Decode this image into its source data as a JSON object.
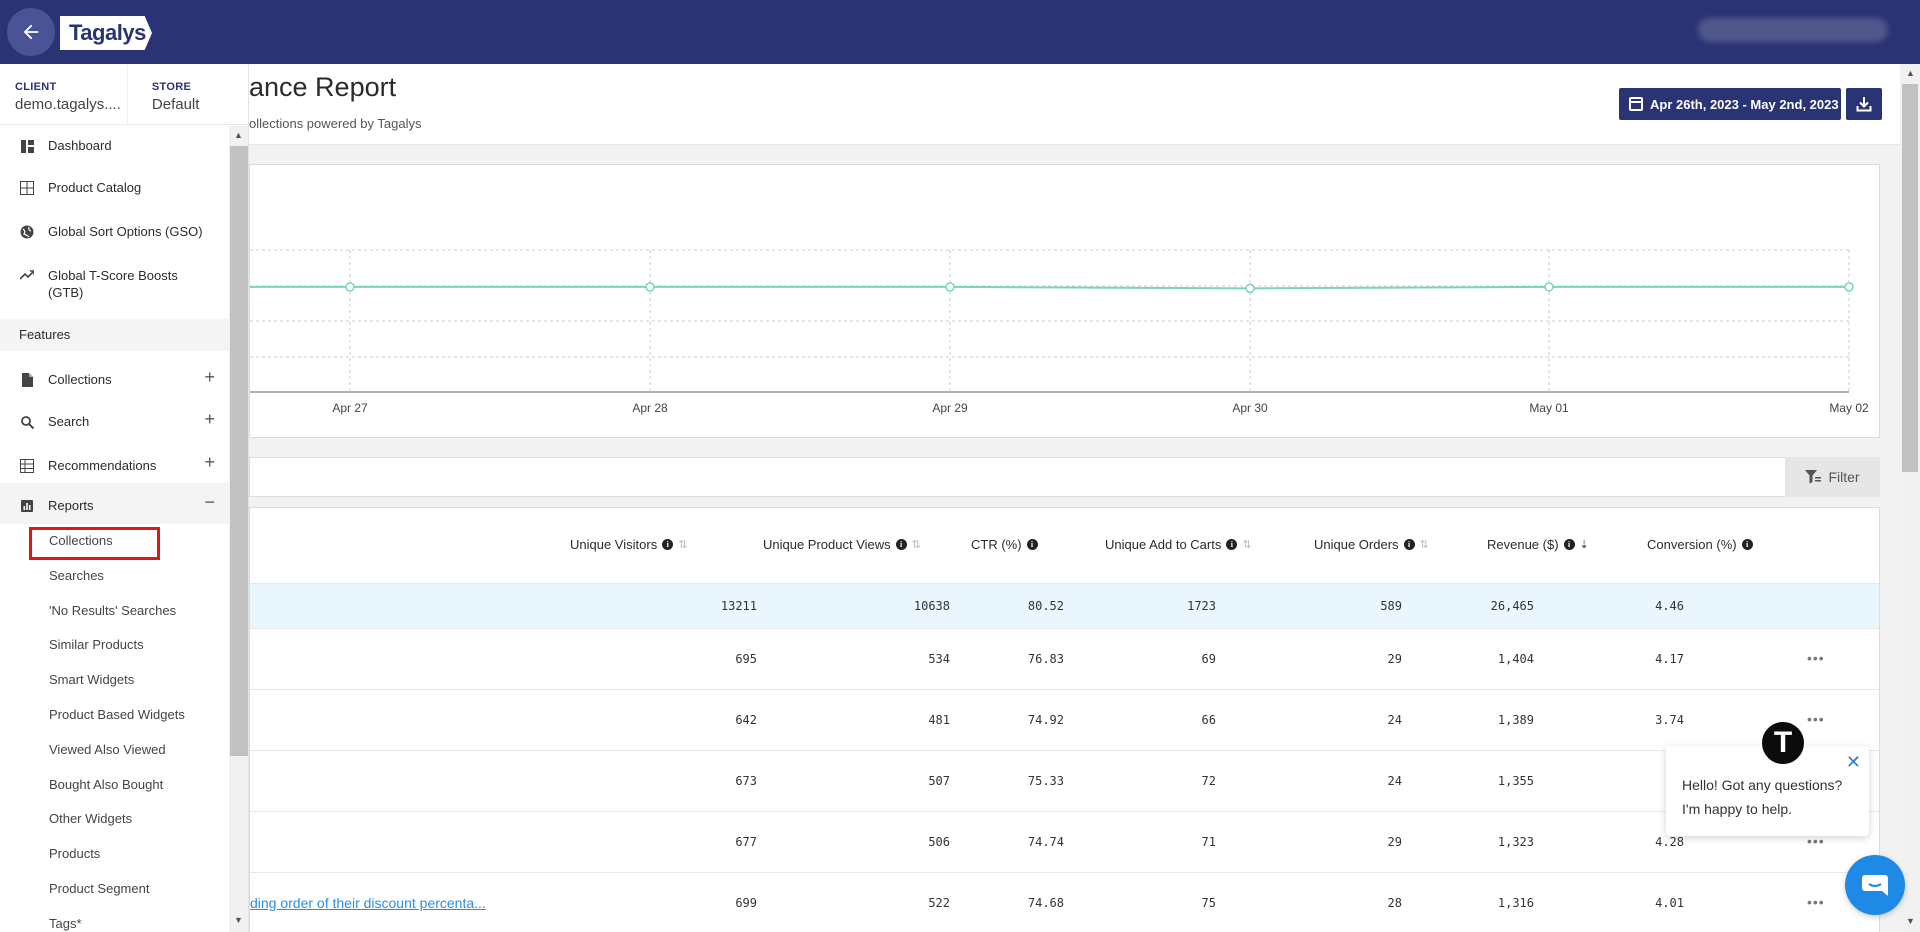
{
  "header": {
    "logo": "Tagalys",
    "back_icon": "arrow-left-icon"
  },
  "sidebar": {
    "client_label": "CLIENT",
    "client_value": "demo.tagalys....",
    "store_label": "STORE",
    "store_value": "Default",
    "top_items": [
      {
        "label": "Dashboard",
        "icon": "dashboard-icon"
      },
      {
        "label": "Product Catalog",
        "icon": "grid-icon"
      },
      {
        "label": "Global Sort Options (GSO)",
        "icon": "globe-icon"
      },
      {
        "label": "Global T-Score Boosts (GTB)",
        "icon": "trending-up-icon"
      }
    ],
    "features_label": "Features",
    "feature_items": [
      {
        "label": "Collections",
        "icon": "document-icon",
        "action": "+"
      },
      {
        "label": "Search",
        "icon": "search-icon",
        "action": "+"
      },
      {
        "label": "Recommendations",
        "icon": "table-icon",
        "action": "+"
      },
      {
        "label": "Reports",
        "icon": "bar-chart-icon",
        "action": "−"
      }
    ],
    "report_items": [
      "Collections",
      "Searches",
      "'No Results' Searches",
      "Similar Products",
      "Smart Widgets",
      "Product Based Widgets",
      "Viewed Also Viewed",
      "Bought Also Bought",
      "Other Widgets",
      "Products",
      "Product Segment",
      "Tags*"
    ]
  },
  "page": {
    "title": "ance Report",
    "subtitle": "ollections powered by Tagalys",
    "date_range": "Apr 26th, 2023 - May 2nd, 2023",
    "filter_label": "Filter"
  },
  "chart_data": {
    "type": "line",
    "x": [
      "Apr 27",
      "Apr 28",
      "Apr 29",
      "Apr 30",
      "May 01",
      "May 02"
    ],
    "series": [
      {
        "values": [
          0.74,
          0.74,
          0.74,
          0.73,
          0.74,
          0.74
        ]
      }
    ],
    "ylim": [
      0,
      1
    ],
    "grid": true,
    "color": "#7ad3bd"
  },
  "table": {
    "columns": [
      {
        "label": "Unique Visitors",
        "sort": "none"
      },
      {
        "label": "Unique Product Views",
        "sort": "none"
      },
      {
        "label": "CTR (%)",
        "sort": "hidden"
      },
      {
        "label": "Unique Add to Carts",
        "sort": "none"
      },
      {
        "label": "Unique Orders",
        "sort": "none"
      },
      {
        "label": "Revenue ($)",
        "sort": "desc"
      },
      {
        "label": "Conversion (%)",
        "sort": "hidden"
      }
    ],
    "total": [
      "13211",
      "10638",
      "80.52",
      "1723",
      "589",
      "26,465",
      "4.46"
    ],
    "rows": [
      {
        "link": "",
        "values": [
          "695",
          "534",
          "76.83",
          "69",
          "29",
          "1,404",
          "4.17"
        ]
      },
      {
        "link": "",
        "values": [
          "642",
          "481",
          "74.92",
          "66",
          "24",
          "1,389",
          "3.74"
        ]
      },
      {
        "link": "",
        "values": [
          "673",
          "507",
          "75.33",
          "72",
          "24",
          "1,355",
          ""
        ]
      },
      {
        "link": "",
        "values": [
          "677",
          "506",
          "74.74",
          "71",
          "29",
          "1,323",
          "4.28"
        ]
      },
      {
        "link": "ding order of their discount percenta...",
        "values": [
          "699",
          "522",
          "74.68",
          "75",
          "28",
          "1,316",
          "4.01"
        ]
      }
    ]
  },
  "chat": {
    "message": "Hello! Got any questions? I'm happy to help.",
    "avatar_letter": "T"
  }
}
